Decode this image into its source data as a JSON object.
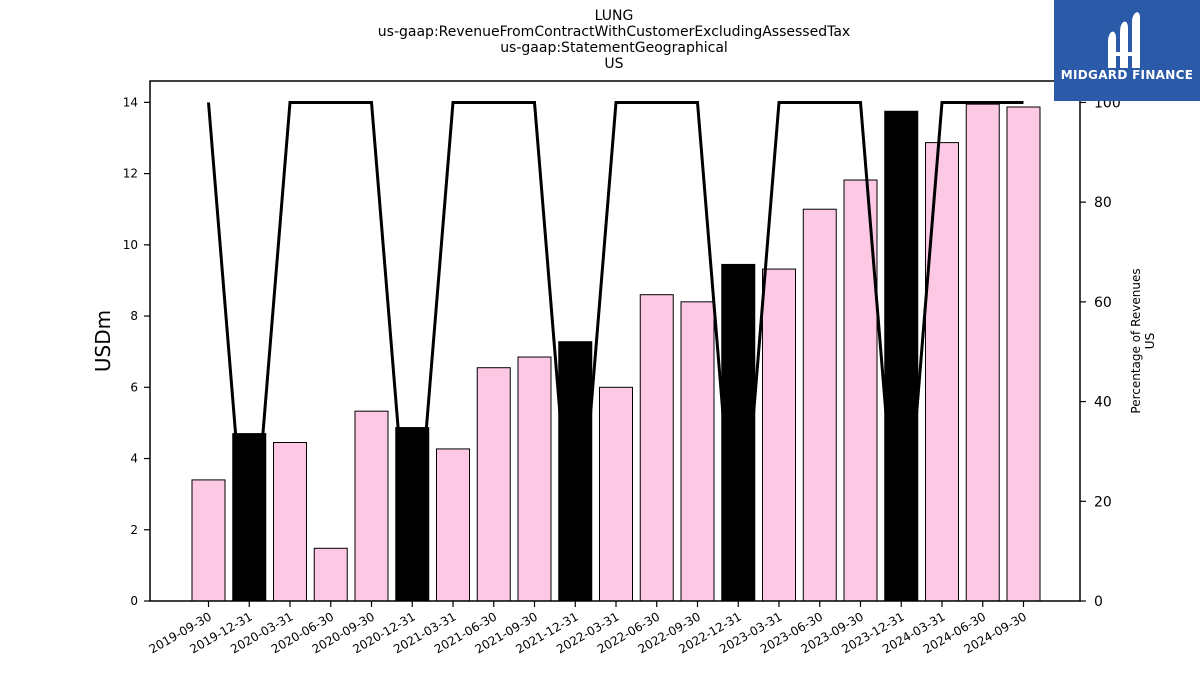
{
  "title_lines": [
    "LUNG",
    "us-gaap:RevenueFromContractWithCustomerExcludingAssessedTax",
    "us-gaap:StatementGeographical",
    "US"
  ],
  "logo": {
    "text": "MIDGARD FINANCE",
    "background": "#2a5aa8",
    "icon": "midgard-logo-icon"
  },
  "chart_data": {
    "type": "bar",
    "categories": [
      "2019-09-30",
      "2019-12-31",
      "2020-03-31",
      "2020-06-30",
      "2020-09-30",
      "2020-12-31",
      "2021-03-31",
      "2021-06-30",
      "2021-09-30",
      "2021-12-31",
      "2022-03-31",
      "2022-06-30",
      "2022-09-30",
      "2022-12-31",
      "2023-03-31",
      "2023-06-30",
      "2023-09-30",
      "2023-12-31",
      "2024-03-31",
      "2024-06-30",
      "2024-09-30"
    ],
    "series": [
      {
        "type": "bar",
        "axis": "left",
        "values": [
          3.4,
          4.7,
          4.45,
          1.48,
          5.33,
          4.87,
          4.27,
          6.55,
          6.85,
          7.28,
          6.0,
          8.6,
          8.4,
          9.45,
          9.32,
          11.0,
          11.82,
          13.75,
          12.87,
          13.95,
          13.87
        ],
        "bar_colors": [
          "#fcc8e4",
          "#000000",
          "#fcc8e4",
          "#fcc8e4",
          "#fcc8e4",
          "#000000",
          "#fcc8e4",
          "#fcc8e4",
          "#fcc8e4",
          "#000000",
          "#fcc8e4",
          "#fcc8e4",
          "#fcc8e4",
          "#000000",
          "#fcc8e4",
          "#fcc8e4",
          "#fcc8e4",
          "#000000",
          "#fcc8e4",
          "#fcc8e4",
          "#fcc8e4"
        ]
      },
      {
        "type": "line",
        "axis": "right",
        "color": "#000000",
        "values": [
          100,
          0,
          100,
          100,
          100,
          0,
          100,
          100,
          100,
          0,
          100,
          100,
          100,
          0,
          100,
          100,
          100,
          0,
          100,
          100,
          100
        ]
      }
    ],
    "ylabel": "USDm",
    "ylim": [
      0,
      14.6
    ],
    "yticks": [
      0,
      2,
      4,
      6,
      8,
      10,
      12,
      14
    ],
    "y2label": [
      "Percentage of Revenues",
      "US"
    ],
    "y2lim": [
      0,
      104.3
    ],
    "y2ticks": [
      0,
      20,
      40,
      60,
      80,
      100
    ],
    "grid": false,
    "legend": "none"
  }
}
